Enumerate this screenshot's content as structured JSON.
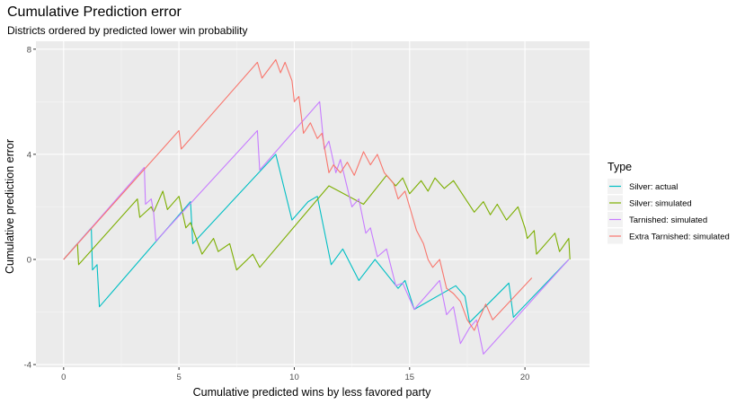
{
  "chart_data": {
    "type": "line",
    "title": "Cumulative Prediction error",
    "subtitle": "Districts ordered by predicted lower win probability",
    "xlabel": "Cumulative predicted wins by less favored party",
    "ylabel": "Cumulative prediction error",
    "xlim": [
      -1.2,
      22.8
    ],
    "ylim": [
      -4.1,
      8.3
    ],
    "x_ticks": [
      0,
      5,
      10,
      15,
      20
    ],
    "x_tick_labels": [
      "0",
      "5",
      "10",
      "15",
      "20"
    ],
    "y_ticks": [
      -4,
      0,
      4,
      8
    ],
    "y_tick_labels": [
      "-4",
      "0",
      "4",
      "8"
    ],
    "grid": true,
    "legend": {
      "title": "Type",
      "position": "right"
    },
    "series": [
      {
        "name": "Silver: actual",
        "color": "#00BFC4",
        "points": [
          [
            0,
            0
          ],
          [
            1.2,
            1.2
          ],
          [
            1.25,
            -0.4
          ],
          [
            1.45,
            -0.2
          ],
          [
            1.55,
            -1.8
          ],
          [
            5.5,
            2.2
          ],
          [
            5.6,
            0.6
          ],
          [
            9.2,
            4.0
          ],
          [
            9.9,
            1.5
          ],
          [
            10.6,
            2.2
          ],
          [
            11,
            2.4
          ],
          [
            11.6,
            -0.2
          ],
          [
            12.1,
            0.4
          ],
          [
            12.8,
            -0.8
          ],
          [
            13.5,
            0
          ],
          [
            14.5,
            -1.1
          ],
          [
            14.8,
            -0.8
          ],
          [
            15.2,
            -1.9
          ],
          [
            17.0,
            -1.0
          ],
          [
            17.4,
            -1.4
          ],
          [
            17.6,
            -2.4
          ],
          [
            19.3,
            -0.9
          ],
          [
            19.5,
            -2.2
          ],
          [
            21.9,
            0
          ]
        ]
      },
      {
        "name": "Silver: simulated",
        "color": "#7CAE00",
        "points": [
          [
            0,
            0
          ],
          [
            0.6,
            0.6
          ],
          [
            0.65,
            -0.2
          ],
          [
            3.2,
            2.3
          ],
          [
            3.3,
            1.6
          ],
          [
            3.8,
            2.0
          ],
          [
            3.9,
            1.8
          ],
          [
            4.3,
            2.6
          ],
          [
            4.5,
            1.9
          ],
          [
            5.0,
            2.4
          ],
          [
            5.3,
            1.2
          ],
          [
            5.5,
            1.4
          ],
          [
            6.0,
            0.2
          ],
          [
            6.5,
            0.8
          ],
          [
            6.7,
            0.3
          ],
          [
            7.2,
            0.6
          ],
          [
            7.5,
            -0.4
          ],
          [
            8.2,
            0.2
          ],
          [
            8.5,
            -0.3
          ],
          [
            11.5,
            2.8
          ],
          [
            13.0,
            2.1
          ],
          [
            14.0,
            3.2
          ],
          [
            14.4,
            2.8
          ],
          [
            14.7,
            3.1
          ],
          [
            15.0,
            2.5
          ],
          [
            15.5,
            3.0
          ],
          [
            15.8,
            2.6
          ],
          [
            16.1,
            3.1
          ],
          [
            16.5,
            2.7
          ],
          [
            16.9,
            3.0
          ],
          [
            17.8,
            1.8
          ],
          [
            18.2,
            2.2
          ],
          [
            18.5,
            1.7
          ],
          [
            18.8,
            2.1
          ],
          [
            19.2,
            1.5
          ],
          [
            19.7,
            2.0
          ],
          [
            20.0,
            1.2
          ],
          [
            20.1,
            0.8
          ],
          [
            20.4,
            1.1
          ],
          [
            20.5,
            0.2
          ],
          [
            21.3,
            1.0
          ],
          [
            21.5,
            0.3
          ],
          [
            21.9,
            0.8
          ],
          [
            21.95,
            0
          ]
        ]
      },
      {
        "name": "Tarnished: simulated",
        "color": "#C77CFF",
        "points": [
          [
            0,
            0
          ],
          [
            3.5,
            3.5
          ],
          [
            3.55,
            2.1
          ],
          [
            3.8,
            2.3
          ],
          [
            3.9,
            1.8
          ],
          [
            4.0,
            0.7
          ],
          [
            8.4,
            4.9
          ],
          [
            8.5,
            3.4
          ],
          [
            11.1,
            6.0
          ],
          [
            11.3,
            4.2
          ],
          [
            11.5,
            4.5
          ],
          [
            11.8,
            3.3
          ],
          [
            12.0,
            3.8
          ],
          [
            12.5,
            2.0
          ],
          [
            12.8,
            2.3
          ],
          [
            13.1,
            1.0
          ],
          [
            13.3,
            1.2
          ],
          [
            13.6,
            0.1
          ],
          [
            14.0,
            0.4
          ],
          [
            14.4,
            -1.0
          ],
          [
            14.7,
            -0.9
          ],
          [
            15.2,
            -1.9
          ],
          [
            16.3,
            -0.8
          ],
          [
            16.6,
            -2.1
          ],
          [
            16.9,
            -1.8
          ],
          [
            17.2,
            -3.2
          ],
          [
            17.6,
            -2.6
          ],
          [
            17.9,
            -2.3
          ],
          [
            18.2,
            -3.6
          ],
          [
            21.9,
            0
          ]
        ]
      },
      {
        "name": "Extra Tarnished: simulated",
        "color": "#F8766D",
        "points": [
          [
            0,
            0
          ],
          [
            5.0,
            4.9
          ],
          [
            5.1,
            4.2
          ],
          [
            8.4,
            7.5
          ],
          [
            8.6,
            6.9
          ],
          [
            9.2,
            7.6
          ],
          [
            9.4,
            7.1
          ],
          [
            9.6,
            7.5
          ],
          [
            9.9,
            6.8
          ],
          [
            10.0,
            6.0
          ],
          [
            10.2,
            6.2
          ],
          [
            10.4,
            4.8
          ],
          [
            10.7,
            5.2
          ],
          [
            11.0,
            4.6
          ],
          [
            11.2,
            4.8
          ],
          [
            11.5,
            3.3
          ],
          [
            11.7,
            3.6
          ],
          [
            12.0,
            3.3
          ],
          [
            12.3,
            3.7
          ],
          [
            12.6,
            3.2
          ],
          [
            13.0,
            4.1
          ],
          [
            13.3,
            3.6
          ],
          [
            13.6,
            4.0
          ],
          [
            13.9,
            3.3
          ],
          [
            14.3,
            2.9
          ],
          [
            14.5,
            2.3
          ],
          [
            14.8,
            2.6
          ],
          [
            15.0,
            2.0
          ],
          [
            15.3,
            1.1
          ],
          [
            15.6,
            0.6
          ],
          [
            15.8,
            0
          ],
          [
            16.0,
            -0.3
          ],
          [
            16.3,
            0
          ],
          [
            16.6,
            -1.1
          ],
          [
            16.9,
            -1.3
          ],
          [
            17.2,
            -1.6
          ],
          [
            17.5,
            -2.3
          ],
          [
            17.8,
            -2.7
          ],
          [
            18.3,
            -1.7
          ],
          [
            18.6,
            -2.3
          ],
          [
            20.3,
            -0.7
          ]
        ]
      }
    ]
  }
}
